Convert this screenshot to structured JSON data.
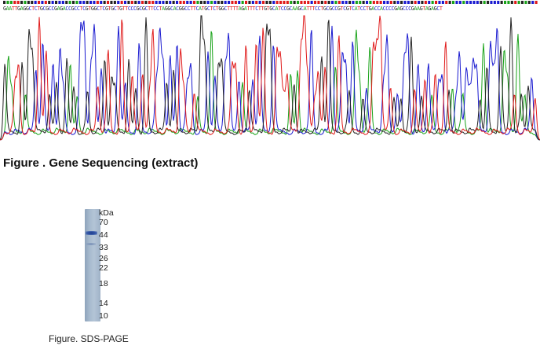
{
  "sequence": {
    "bases": "GAATTGAGGCTCTGCGCCGAGACCGCCTCGTGGCTCGTGCTGTTCCCGCGCTTCCTAGGCACGGCCTTCATGCTCTGGCTTTTAGATTTCTTGTGCATCCGCAAGCATTTCCTGCGCCGTCGTCATCCTGACCACCCCGAGCCCGAAGTAGAGCT",
    "base_colors": {
      "A": "#1aa31a",
      "C": "#1a1ad0",
      "G": "#222222",
      "T": "#e01a1a"
    }
  },
  "figure1": {
    "caption": "Figure . Gene Sequencing (extract)"
  },
  "gel": {
    "unit_label": "kDa",
    "markers": [
      "70",
      "44",
      "33",
      "26",
      "22",
      "18",
      "14",
      "10"
    ],
    "lane_color": "#a9bccf",
    "band_color": "#1c3c8c"
  },
  "figure2": {
    "caption": "Figure. SDS-PAGE"
  }
}
